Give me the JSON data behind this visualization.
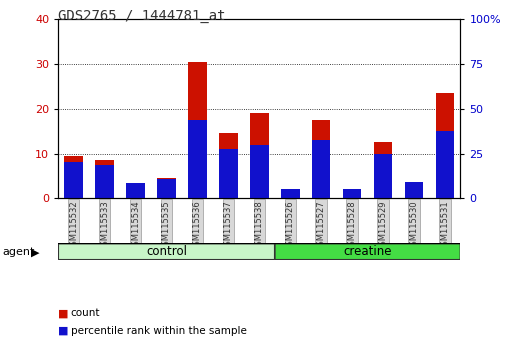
{
  "title": "GDS2765 / 1444781_at",
  "samples": [
    "GSM115532",
    "GSM115533",
    "GSM115534",
    "GSM115535",
    "GSM115536",
    "GSM115537",
    "GSM115538",
    "GSM115526",
    "GSM115527",
    "GSM115528",
    "GSM115529",
    "GSM115530",
    "GSM115531"
  ],
  "count_values": [
    9.5,
    8.5,
    3.5,
    4.5,
    30.5,
    14.5,
    19.0,
    1.5,
    17.5,
    2.0,
    12.5,
    3.0,
    23.5
  ],
  "percentile_values": [
    20.0,
    18.5,
    8.5,
    11.0,
    43.5,
    27.5,
    30.0,
    5.0,
    32.5,
    5.0,
    25.0,
    9.0,
    37.5
  ],
  "groups": [
    {
      "label": "control",
      "start": 0,
      "end": 7,
      "color": "#c8f5c8"
    },
    {
      "label": "creatine",
      "start": 7,
      "end": 13,
      "color": "#44dd44"
    }
  ],
  "group_label": "agent",
  "left_ylim": [
    0,
    40
  ],
  "right_ylim": [
    0,
    100
  ],
  "left_yticks": [
    0,
    10,
    20,
    30,
    40
  ],
  "right_yticks": [
    0,
    25,
    50,
    75,
    100
  ],
  "left_ycolor": "#cc0000",
  "right_ycolor": "#0000cc",
  "bar_color_count": "#cc1100",
  "bar_color_pct": "#1111cc",
  "bar_width": 0.6,
  "legend_count": "count",
  "legend_pct": "percentile rank within the sample",
  "bg_color": "#ffffff",
  "plot_bg_color": "#ffffff",
  "grid_color": "black",
  "tick_label_color": "#333333",
  "title_color": "#333333"
}
